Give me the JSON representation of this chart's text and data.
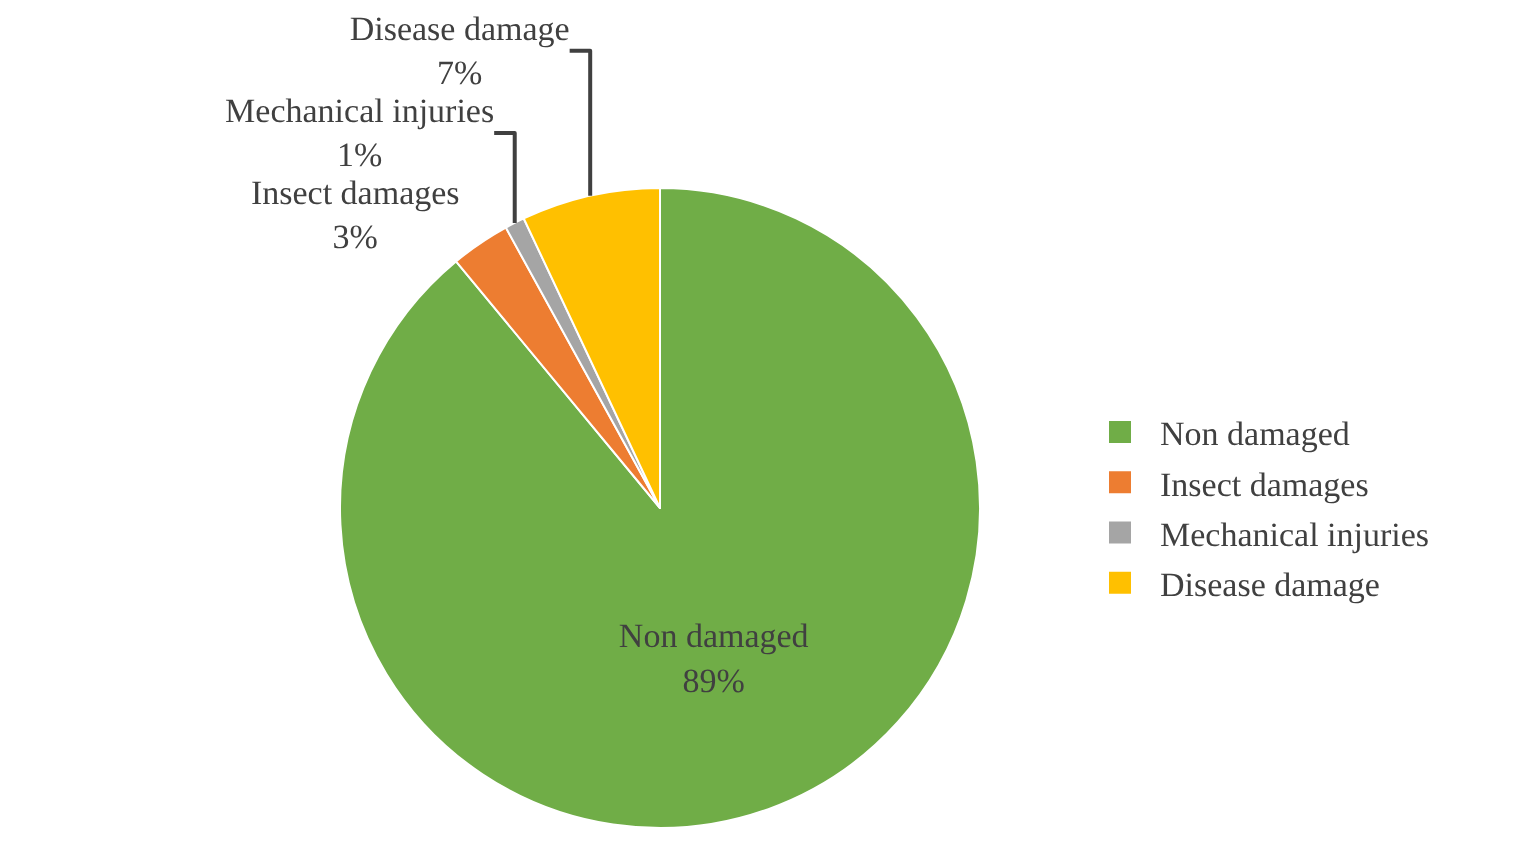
{
  "chart_data": {
    "type": "pie",
    "categories": [
      "Non damaged",
      "Insect damages",
      "Mechanical injuries",
      "Disease damage"
    ],
    "values": [
      89,
      3,
      1,
      7
    ],
    "value_labels": [
      "89%",
      "3%",
      "1%",
      "7%"
    ],
    "colors": [
      "#70ad47",
      "#ed7d31",
      "#a5a5a5",
      "#ffc000"
    ],
    "legend": "right"
  }
}
